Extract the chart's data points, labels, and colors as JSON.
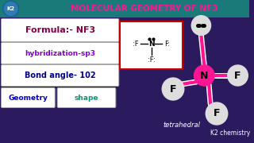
{
  "title": "MOLECULAR GEOMETRY OF NF3",
  "title_color": "#FF1493",
  "bg_color": "#2B1B5E",
  "header_bg": "#1A7A7A",
  "formula_text": "Formula:- NF3",
  "hybridization_text": "hybridization-sp3",
  "bond_angle_text": "Bond angle- 102",
  "geometry_text": "Geometry",
  "shape_text": "shape",
  "tetrahedral_text": "tetrahedral",
  "k2_text": "K2 chemistry",
  "formula_color": "#880044",
  "hybrid_color": "#8800CC",
  "bond_color": "#000088",
  "geo_color": "#0000CC",
  "shape_color": "#009977",
  "lewis_box_border": "#CC0000",
  "N_color": "#FF1493",
  "F_color": "#DDDDDD",
  "bond_tube_color": "#FF1493"
}
